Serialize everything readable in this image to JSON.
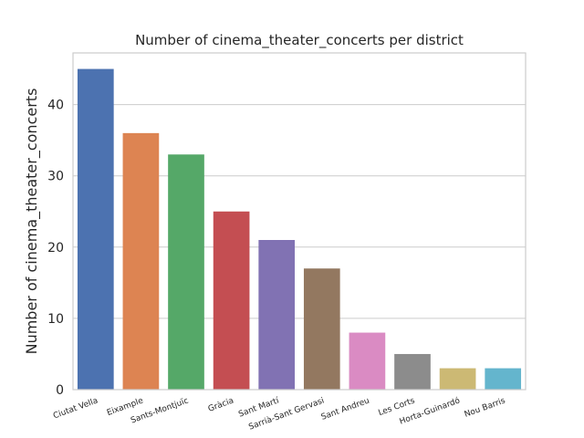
{
  "chart_data": {
    "type": "bar",
    "title": "Number of cinema_theater_concerts per district",
    "xlabel": "",
    "ylabel": "Number of cinema_theater_concerts",
    "categories": [
      "Ciutat Vella",
      "Eixample",
      "Sants-Montjuïc",
      "Gràcia",
      "Sant Martí",
      "Sarrià-Sant Gervasi",
      "Sant Andreu",
      "Les Corts",
      "Horta-Guinardó",
      "Nou Barris"
    ],
    "values": [
      45,
      36,
      33,
      25,
      21,
      17,
      8,
      5,
      3,
      3
    ],
    "colors": [
      "#4c72b0",
      "#dd8452",
      "#55a868",
      "#c44e52",
      "#8172b3",
      "#937860",
      "#da8bc3",
      "#8c8c8c",
      "#ccb974",
      "#64b5cd"
    ],
    "ylim": [
      0,
      47.25
    ],
    "yticks": [
      0,
      10,
      20,
      30,
      40
    ],
    "grid": true,
    "grid_axis": "y",
    "legend": "none"
  }
}
